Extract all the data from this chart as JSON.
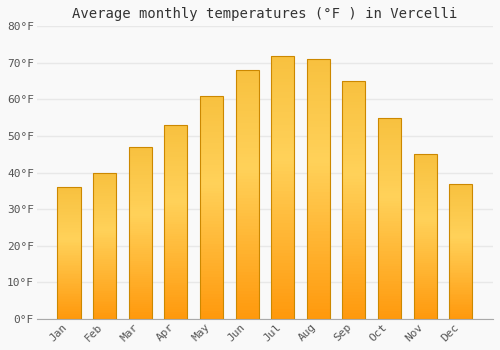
{
  "title": "Average monthly temperatures (°F ) in Vercelli",
  "months": [
    "Jan",
    "Feb",
    "Mar",
    "Apr",
    "May",
    "Jun",
    "Jul",
    "Aug",
    "Sep",
    "Oct",
    "Nov",
    "Dec"
  ],
  "values": [
    36,
    40,
    47,
    53,
    61,
    68,
    72,
    71,
    65,
    55,
    45,
    37
  ],
  "ylim": [
    0,
    80
  ],
  "yticks": [
    0,
    10,
    20,
    30,
    40,
    50,
    60,
    70,
    80
  ],
  "ytick_labels": [
    "0°F",
    "10°F",
    "20°F",
    "30°F",
    "40°F",
    "50°F",
    "60°F",
    "70°F",
    "80°F"
  ],
  "background_color": "#f9f9f9",
  "grid_color": "#e8e8e8",
  "title_fontsize": 10,
  "tick_fontsize": 8,
  "bar_color_dark": [
    1.0,
    0.6,
    0.05
  ],
  "bar_color_light": [
    1.0,
    0.82,
    0.35
  ],
  "bar_edge_color": "#CC8800",
  "bar_width": 0.65
}
